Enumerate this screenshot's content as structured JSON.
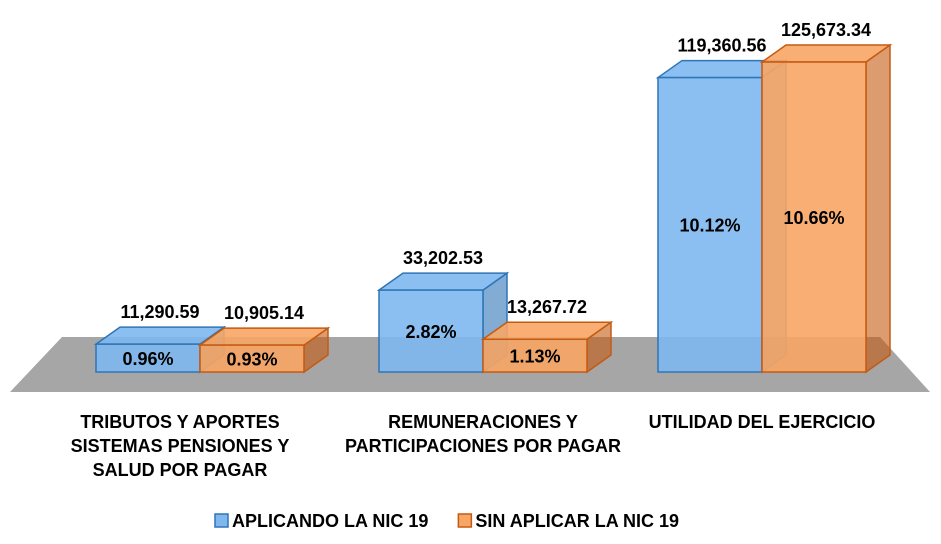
{
  "chart_data": {
    "type": "bar3d",
    "categories": [
      "TRIBUTOS Y APORTES SISTEMAS PENSIONES Y SALUD POR PAGAR",
      "REMUNERACIONES Y PARTICIPACIONES POR PAGAR",
      "UTILIDAD DEL EJERCICIO"
    ],
    "series": [
      {
        "name": "APLICANDO LA NIC 19",
        "color": "#7fb8ef",
        "edge": "#2e75b6",
        "values": [
          11290.59,
          33202.53,
          119360.56
        ],
        "value_labels": [
          "11,290.59",
          "33,202.53",
          "119,360.56"
        ],
        "shares": [
          0.96,
          2.82,
          10.12
        ],
        "share_labels": [
          "0.96%",
          "2.82%",
          "10.12%"
        ]
      },
      {
        "name": "SIN APLICAR LA NIC 19",
        "color": "#f8a665",
        "edge": "#c55a11",
        "values": [
          10905.14,
          13267.72,
          125673.34
        ],
        "value_labels": [
          "10,905.14",
          "13,267.72",
          "125,673.34"
        ],
        "shares": [
          0.93,
          1.13,
          10.66
        ],
        "share_labels": [
          "0.93%",
          "1.13%",
          "10.66%"
        ]
      }
    ],
    "legend": "bottom"
  }
}
